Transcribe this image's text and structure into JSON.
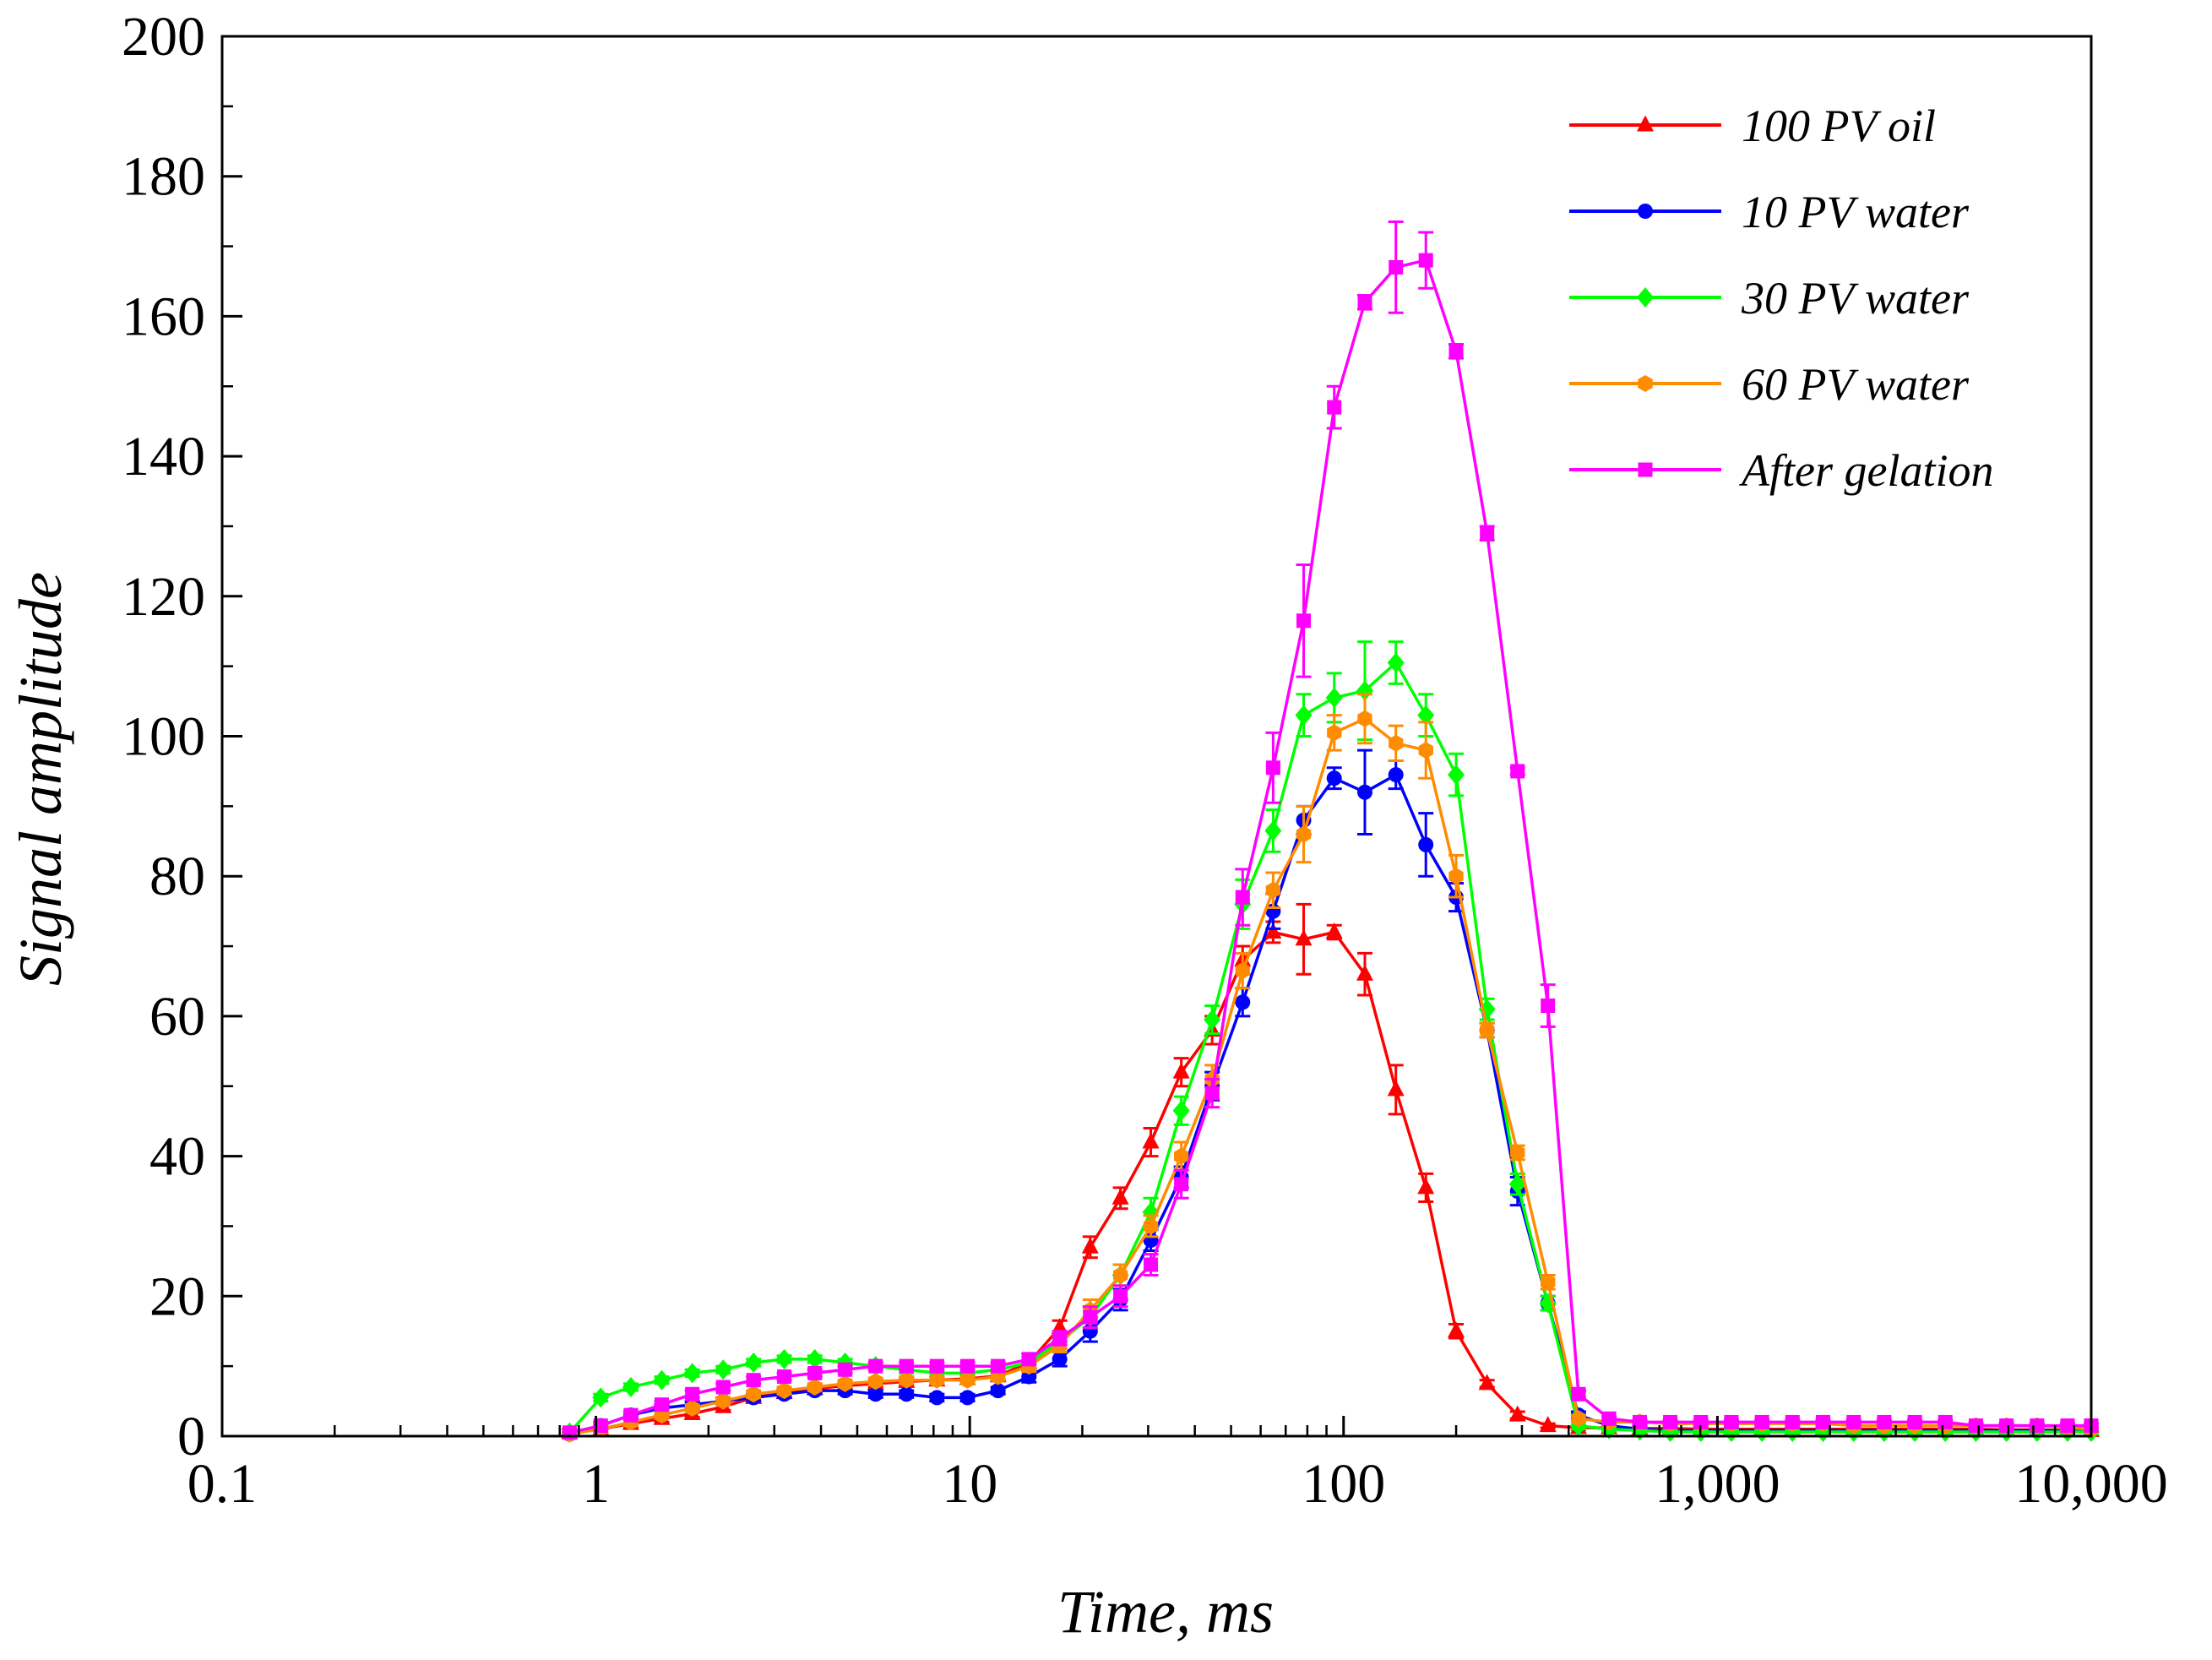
{
  "chart_data": {
    "type": "line",
    "xlabel": "Time, ms",
    "ylabel": "Signal amplitude",
    "x_scale": "log",
    "xlim": [
      0.1,
      10000
    ],
    "ylim": [
      0,
      200
    ],
    "x_ticks": [
      "0.1",
      "1",
      "10",
      "100",
      "1,000",
      "10,000"
    ],
    "y_ticks": [
      "0",
      "20",
      "40",
      "60",
      "80",
      "100",
      "120",
      "140",
      "160",
      "180",
      "200"
    ],
    "legend_position": "top-right",
    "x": [
      0.85,
      1.03,
      1.24,
      1.5,
      1.81,
      2.19,
      2.64,
      3.19,
      3.85,
      4.64,
      5.6,
      6.77,
      8.17,
      9.86,
      11.9,
      14.4,
      17.4,
      21,
      25.3,
      30.5,
      36.8,
      44.5,
      53.7,
      64.8,
      78.2,
      94.4,
      114,
      138,
      166,
      200,
      242,
      292,
      352,
      425,
      513,
      620,
      748,
      903,
      1090,
      1316,
      1588,
      1917,
      2315,
      2794,
      3373,
      4071,
      4915,
      5933,
      7162,
      8645,
      10000
    ],
    "series": [
      {
        "name": "100 PV oil",
        "color": "#ff0000",
        "marker": "triangle",
        "values": [
          0.5,
          1.0,
          1.8,
          2.5,
          3.2,
          4.2,
          5.5,
          6.2,
          6.8,
          7.2,
          7.5,
          7.8,
          8.0,
          8.2,
          8.6,
          10.5,
          15.5,
          27,
          34,
          42,
          52,
          58,
          68,
          72,
          71,
          72,
          66,
          49.5,
          35.5,
          15,
          7.5,
          3,
          1.5,
          1.2,
          1.2,
          1.1,
          1.1,
          1.0,
          1.0,
          1.0,
          1.0,
          1.0,
          1.0,
          1.0,
          1.0,
          1.0,
          1.0,
          0.9,
          0.9,
          0.8,
          0.8
        ],
        "errors": [
          0.5,
          0.5,
          0.5,
          0.5,
          0.5,
          0.5,
          0.5,
          0.5,
          0.5,
          0.5,
          0.5,
          0.5,
          0.5,
          0.5,
          0.5,
          0.8,
          1.0,
          1.5,
          1.5,
          2.0,
          2.0,
          2.0,
          2.0,
          1.5,
          5.0,
          1.0,
          3.0,
          3.5,
          2.0,
          1.0,
          0.5,
          0.5,
          0.3,
          0.3,
          0.3,
          0.3,
          0.3,
          0.3,
          0.3,
          0.3,
          0.3,
          0.3,
          0.3,
          0.3,
          0.3,
          0.3,
          0.3,
          0.3,
          0.3,
          0.3,
          0.3
        ]
      },
      {
        "name": "10 PV water",
        "color": "#0000ff",
        "marker": "circle",
        "values": [
          0.3,
          1.5,
          3.0,
          4.0,
          4.5,
          5.0,
          5.5,
          6.0,
          6.5,
          6.5,
          6.0,
          6.0,
          5.5,
          5.5,
          6.5,
          8.5,
          11,
          15,
          19.5,
          28,
          37,
          50,
          62,
          75,
          88,
          94,
          92,
          94.5,
          84.5,
          77,
          58,
          35,
          19,
          3,
          1.5,
          1.0,
          0.8,
          0.8,
          0.8,
          0.8,
          0.8,
          0.8,
          0.8,
          0.8,
          0.8,
          0.8,
          0.8,
          0.8,
          0.8,
          0.8,
          0.8
        ],
        "errors": [
          0.5,
          0.5,
          0.5,
          0.5,
          0.5,
          0.5,
          0.5,
          0.5,
          0.5,
          0.5,
          0.5,
          0.5,
          0.5,
          0.5,
          0.5,
          0.8,
          1.0,
          1.5,
          1.5,
          1.5,
          1.5,
          2.0,
          2.0,
          2.5,
          2.0,
          1.5,
          6.0,
          2.0,
          4.5,
          2.0,
          1.0,
          2.0,
          1.0,
          0.5,
          0.3,
          0.3,
          0.3,
          0.3,
          0.3,
          0.3,
          0.3,
          0.3,
          0.3,
          0.3,
          0.3,
          0.3,
          0.3,
          0.3,
          0.3,
          0.3,
          0.3
        ]
      },
      {
        "name": "30 PV water",
        "color": "#00ff00",
        "marker": "diamond",
        "values": [
          0.5,
          5.5,
          7.0,
          8.0,
          9.0,
          9.5,
          10.5,
          11,
          11,
          10.5,
          10,
          9.5,
          9.0,
          9.0,
          9.5,
          10.5,
          13.5,
          17,
          23,
          32,
          46.5,
          59.5,
          76,
          86.5,
          103,
          105.5,
          106.5,
          110.5,
          103,
          94.5,
          61,
          36,
          19,
          1.5,
          1.0,
          0.8,
          0.6,
          0.6,
          0.6,
          0.6,
          0.6,
          0.6,
          0.6,
          0.6,
          0.6,
          0.6,
          0.6,
          0.6,
          0.6,
          0.6,
          0.6
        ],
        "errors": [
          0.5,
          0.5,
          0.5,
          0.5,
          0.5,
          0.5,
          0.5,
          0.5,
          0.5,
          0.5,
          0.5,
          0.5,
          0.5,
          0.5,
          0.5,
          0.8,
          1.0,
          1.5,
          1.5,
          2.0,
          2.0,
          2.0,
          3.5,
          3.0,
          3.0,
          3.5,
          7.0,
          3.0,
          3.0,
          3.0,
          1.5,
          1.5,
          1.0,
          0.5,
          0.3,
          0.3,
          0.3,
          0.3,
          0.3,
          0.3,
          0.3,
          0.3,
          0.3,
          0.3,
          0.3,
          0.3,
          0.3,
          0.3,
          0.3,
          0.3,
          0.3
        ]
      },
      {
        "name": "60 PV water",
        "color": "#ff8c00",
        "marker": "hexagon",
        "values": [
          0.3,
          1.0,
          2.0,
          3.0,
          4.0,
          5.0,
          6.0,
          6.5,
          7.0,
          7.5,
          7.8,
          8.0,
          8.0,
          8.0,
          8.5,
          10,
          13,
          18,
          23,
          30,
          40,
          51,
          66.5,
          78,
          86,
          100.5,
          102.5,
          99,
          98,
          80,
          58,
          40.5,
          22,
          2.5,
          2.0,
          2.0,
          1.8,
          1.8,
          1.8,
          1.8,
          1.8,
          1.8,
          1.5,
          1.5,
          1.5,
          1.5,
          1.5,
          1.5,
          1.5,
          1.2,
          1.0
        ],
        "errors": [
          0.5,
          0.5,
          0.5,
          0.5,
          0.5,
          0.5,
          0.5,
          0.5,
          0.5,
          0.5,
          0.5,
          0.5,
          0.5,
          0.5,
          0.5,
          0.8,
          1.0,
          1.5,
          1.5,
          1.5,
          2.0,
          2.0,
          2.5,
          2.5,
          4.0,
          2.5,
          3.5,
          2.5,
          4.0,
          3.0,
          1.0,
          1.0,
          1.0,
          0.5,
          0.3,
          0.3,
          0.3,
          0.3,
          0.3,
          0.3,
          0.3,
          0.3,
          0.3,
          0.3,
          0.3,
          0.3,
          0.3,
          0.3,
          0.3,
          0.3,
          0.3
        ]
      },
      {
        "name": "After gelation",
        "color": "#ff00ff",
        "marker": "square",
        "values": [
          0.5,
          1.5,
          3.0,
          4.5,
          6.0,
          7.0,
          8.0,
          8.5,
          9.0,
          9.5,
          10.0,
          10.0,
          10.0,
          10.0,
          10.0,
          11,
          14,
          17,
          20,
          24.5,
          36,
          49,
          77,
          95.5,
          116.5,
          147,
          162,
          167,
          168,
          155,
          129,
          95,
          61.5,
          6,
          2.5,
          2.0,
          2.0,
          2.0,
          2.0,
          2.0,
          2.0,
          2.0,
          2.0,
          2.0,
          2.0,
          2.0,
          1.5,
          1.5,
          1.5,
          1.5,
          1.5
        ],
        "errors": [
          0.5,
          0.5,
          0.5,
          0.5,
          0.5,
          0.5,
          0.5,
          0.5,
          0.5,
          0.5,
          0.5,
          0.5,
          0.5,
          0.5,
          0.5,
          0.8,
          1.0,
          1.5,
          1.5,
          1.5,
          2.0,
          2.0,
          4.0,
          5.0,
          8.0,
          3.0,
          1.0,
          6.5,
          4.0,
          1.0,
          1.0,
          0.5,
          3.0,
          0.5,
          0.3,
          0.3,
          0.3,
          0.3,
          0.3,
          0.3,
          0.3,
          0.3,
          0.3,
          0.3,
          0.3,
          0.3,
          0.3,
          0.3,
          0.3,
          0.3,
          0.3
        ]
      }
    ]
  }
}
